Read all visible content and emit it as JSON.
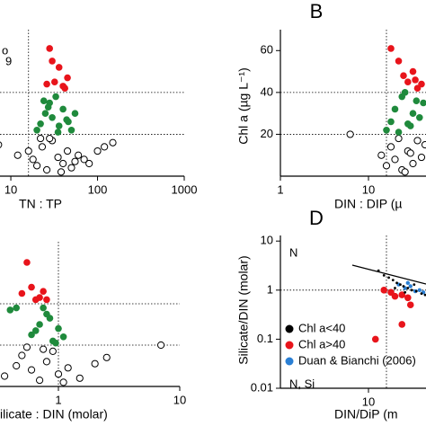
{
  "chart_data": [
    {
      "type": "scatter",
      "xlog": true,
      "xlim": [
        7.5,
        1000
      ],
      "ylim": [
        0,
        70
      ],
      "xticks": [
        10,
        100,
        1000
      ],
      "yticks": [],
      "x_label": "TN : TP",
      "annotations": [
        "o",
        "9"
      ],
      "vlines": [
        16
      ],
      "hlines": [
        20,
        40
      ],
      "series": [
        {
          "color": "#e8141b",
          "marker": "filled",
          "x": [
            28,
            32,
            36,
            40,
            45,
            30,
            42,
            26
          ],
          "values": [
            61,
            45,
            52,
            43,
            47,
            55,
            42,
            44
          ]
        },
        {
          "color": "#1f8a3c",
          "marker": "filled",
          "x": [
            20,
            22,
            25,
            28,
            30,
            33,
            36,
            40,
            44,
            50,
            55,
            24,
            35,
            46,
            27
          ],
          "values": [
            22,
            25,
            30,
            35,
            28,
            38,
            24,
            32,
            27,
            22,
            30,
            36,
            21,
            26,
            33
          ]
        },
        {
          "color": "#000000",
          "marker": "open",
          "x": [
            7.2,
            12,
            16,
            18,
            20,
            23,
            26,
            30,
            35,
            40,
            45,
            50,
            60,
            70,
            80,
            100,
            120,
            150,
            28,
            38,
            55,
            22
          ],
          "values": [
            15,
            10,
            12,
            8,
            5,
            14,
            3,
            17,
            9,
            6,
            12,
            4,
            10,
            8,
            6,
            12,
            14,
            16,
            18,
            2,
            7,
            18
          ]
        }
      ]
    },
    {
      "type": "scatter",
      "xlog": true,
      "xlim": [
        1,
        45
      ],
      "ylim": [
        0,
        70
      ],
      "xticks": [
        1,
        10
      ],
      "yticks": [
        20,
        40,
        60
      ],
      "panel": "B",
      "x_label": "DIN : DIP (µ",
      "y_label": "Chl a (µg L⁻¹)",
      "vlines": [
        16
      ],
      "hlines": [
        20,
        40
      ],
      "series": [
        {
          "color": "#e8141b",
          "marker": "filled",
          "x": [
            18,
            22,
            28,
            32,
            36,
            40,
            25,
            34
          ],
          "values": [
            61,
            55,
            45,
            50,
            42,
            44,
            48,
            46
          ]
        },
        {
          "color": "#1f8a3c",
          "marker": "filled",
          "x": [
            16,
            18,
            20,
            24,
            28,
            32,
            38,
            42,
            22,
            30,
            35,
            26
          ],
          "values": [
            22,
            26,
            32,
            38,
            25,
            30,
            28,
            35,
            21,
            24,
            36,
            40
          ]
        },
        {
          "color": "#000000",
          "marker": "open",
          "x": [
            6.2,
            14,
            16,
            18,
            20,
            24,
            28,
            32,
            36,
            40,
            44,
            22,
            26,
            30
          ],
          "values": [
            20,
            10,
            5,
            14,
            8,
            3,
            12,
            6,
            17,
            9,
            15,
            18,
            2,
            11
          ]
        }
      ]
    },
    {
      "type": "scatter",
      "xlog": true,
      "xlim": [
        0.33,
        10
      ],
      "ylim": [
        0,
        70
      ],
      "xticks": [
        1,
        10
      ],
      "yticks": [],
      "x_label": "ilicate : DIN (molar)",
      "vlines": [
        1
      ],
      "hlines": [
        20,
        40
      ],
      "series": [
        {
          "color": "#e8141b",
          "marker": "filled",
          "x": [
            0.55,
            0.5,
            0.6,
            0.65,
            0.7,
            0.75,
            0.8
          ],
          "values": [
            60,
            45,
            48,
            42,
            43,
            46,
            42
          ]
        },
        {
          "color": "#1f8a3c",
          "marker": "filled",
          "x": [
            0.4,
            0.45,
            0.6,
            0.7,
            0.8,
            0.9,
            1.0,
            1.1,
            0.75,
            0.85,
            0.95,
            0.65
          ],
          "values": [
            37,
            38,
            25,
            30,
            35,
            22,
            28,
            24,
            38,
            33,
            21,
            27
          ]
        },
        {
          "color": "#000000",
          "marker": "open",
          "x": [
            0.36,
            0.45,
            0.5,
            0.6,
            0.7,
            0.8,
            0.9,
            1.0,
            1.2,
            1.5,
            2.0,
            2.5,
            7,
            0.55,
            0.75,
            1.1
          ],
          "values": [
            5,
            10,
            15,
            8,
            3,
            12,
            17,
            6,
            9,
            4,
            11,
            14,
            20,
            19,
            18,
            2
          ]
        }
      ]
    },
    {
      "type": "scatter",
      "xlog": true,
      "ylog": true,
      "xlim": [
        1,
        45
      ],
      "ylim": [
        0.01,
        13
      ],
      "xticks": [
        10
      ],
      "yticks": [
        10,
        1,
        0.1,
        0.01
      ],
      "panel": "D",
      "x_label": "DIN/DiP (m",
      "y_label": "Silicate/DIN (molar)",
      "annotations": [
        "N",
        "N, Si"
      ],
      "vlines": [
        16
      ],
      "hlines": [
        1
      ],
      "series": [
        {
          "name": "Chl a<40",
          "color": "#000000",
          "marker": "dot",
          "x": [
            13,
            15,
            17,
            19,
            21,
            23,
            25,
            28,
            31,
            35,
            40,
            44,
            20,
            26,
            33
          ],
          "values": [
            2.5,
            2,
            1.8,
            1.6,
            1.4,
            1.3,
            1.2,
            1.1,
            1.0,
            0.95,
            0.85,
            0.8,
            1.1,
            0.9,
            1.3
          ]
        },
        {
          "name": "Chl a>40",
          "color": "#e8141b",
          "marker": "filled",
          "x": [
            15,
            18,
            20,
            24,
            28,
            12,
            24,
            30
          ],
          "values": [
            1.0,
            0.9,
            0.75,
            0.8,
            0.7,
            0.1,
            0.2,
            0.5
          ]
        },
        {
          "name": "Duan & Bianchi (2006)",
          "color": "#2a7fd4",
          "marker": "small",
          "x": [
            22,
            26,
            30,
            34,
            38,
            42,
            28
          ],
          "values": [
            1.3,
            1.1,
            1.2,
            0.95,
            1.0,
            0.9,
            1.4
          ]
        }
      ]
    }
  ]
}
